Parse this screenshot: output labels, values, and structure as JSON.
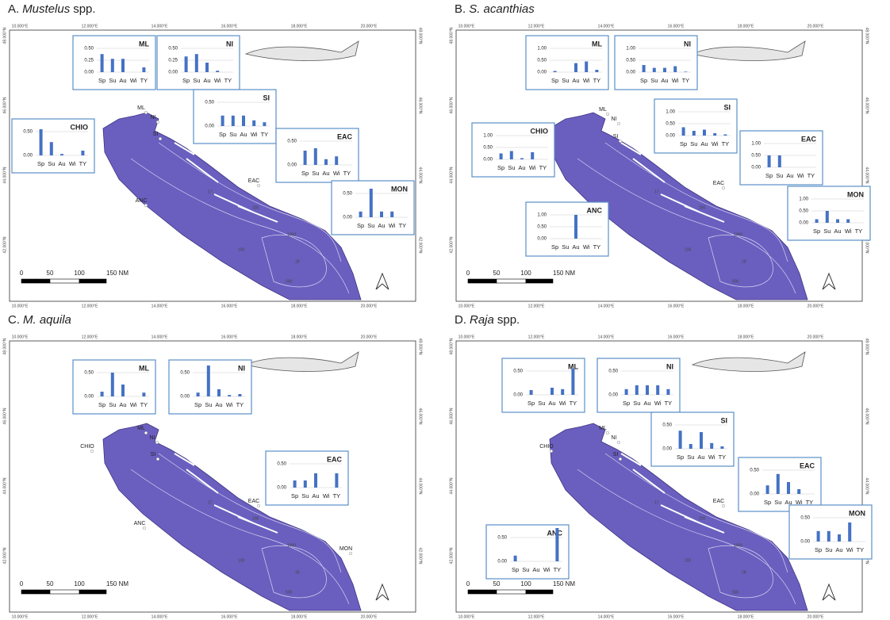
{
  "seasons": [
    "Sp",
    "Su",
    "Au",
    "Wi",
    "TY"
  ],
  "longitudes": [
    "10.000°E",
    "12.000°E",
    "14.000°E",
    "16.000°E",
    "18.000°E",
    "20.000°E"
  ],
  "latitudes": [
    "48.000°N",
    "46.000°N",
    "44.000°N",
    "42.000°N"
  ],
  "scale_bar": [
    "0",
    "50",
    "100",
    "150 NM"
  ],
  "depth_labels": [
    "17",
    "18",
    "200",
    "1000",
    "100",
    "500"
  ],
  "panels": [
    {
      "label": "A.",
      "taxon": "Mustelus",
      "suffix": "spp.",
      "ports": [
        "ML",
        "NI",
        "SI",
        "EAC",
        "ANC"
      ],
      "insets": [
        {
          "site": "ML",
          "ylim": [
            0,
            0.5
          ],
          "yticks": [
            {
              "value": 0,
              "label": "0.00"
            },
            {
              "value": 0.25,
              "label": "0.25"
            },
            {
              "value": 0.5,
              "label": "0.50"
            }
          ],
          "values": [
            0.38,
            0.28,
            0.28,
            0,
            0.1
          ]
        },
        {
          "site": "NI",
          "ylim": [
            0,
            0.5
          ],
          "yticks": [
            {
              "value": 0,
              "label": "0.00"
            },
            {
              "value": 0.25,
              "label": "0.25"
            },
            {
              "value": 0.5,
              "label": "0.50"
            }
          ],
          "values": [
            0.33,
            0.38,
            0.2,
            0.03,
            0
          ]
        },
        {
          "site": "SI",
          "ylim": [
            0,
            0.5
          ],
          "yticks": [
            {
              "value": 0,
              "label": "0.00"
            },
            {
              "value": 0.5,
              "label": "0.50"
            }
          ],
          "values": [
            0.22,
            0.22,
            0.22,
            0.12,
            0.08
          ]
        },
        {
          "site": "CHIO",
          "ylim": [
            0,
            0.5
          ],
          "yticks": [
            {
              "value": 0,
              "label": "0.00"
            },
            {
              "value": 0.5,
              "label": "0.50"
            }
          ],
          "values": [
            0.55,
            0.28,
            0.03,
            0,
            0.1
          ]
        },
        {
          "site": "EAC",
          "ylim": [
            0,
            0.5
          ],
          "yticks": [
            {
              "value": 0,
              "label": "0.00"
            },
            {
              "value": 0.5,
              "label": "0.50"
            }
          ],
          "values": [
            0.3,
            0.35,
            0.12,
            0.18,
            0
          ]
        },
        {
          "site": "MON",
          "ylim": [
            0,
            0.5
          ],
          "yticks": [
            {
              "value": 0,
              "label": "0.00"
            },
            {
              "value": 0.5,
              "label": "0.50"
            }
          ],
          "values": [
            0.12,
            0.6,
            0.12,
            0.12,
            0
          ]
        }
      ]
    },
    {
      "label": "B.",
      "taxon": "S. acanthias",
      "ports": [
        "ML",
        "NI",
        "SI",
        "EAC"
      ],
      "insets": [
        {
          "site": "ML",
          "ylim": [
            0,
            1
          ],
          "yticks": [
            {
              "value": 0,
              "label": "0.00"
            },
            {
              "value": 0.5,
              "label": "0.50"
            },
            {
              "value": 1,
              "label": "1.00"
            }
          ],
          "values": [
            0.05,
            0,
            0.38,
            0.45,
            0.1
          ]
        },
        {
          "site": "NI",
          "ylim": [
            0,
            1
          ],
          "yticks": [
            {
              "value": 0,
              "label": "0.00"
            },
            {
              "value": 0.5,
              "label": "0.50"
            },
            {
              "value": 1,
              "label": "1.00"
            }
          ],
          "values": [
            0.3,
            0.18,
            0.18,
            0.25,
            0.02
          ]
        },
        {
          "site": "SI",
          "ylim": [
            0,
            1
          ],
          "yticks": [
            {
              "value": 0,
              "label": "0.00"
            },
            {
              "value": 0.5,
              "label": "0.50"
            },
            {
              "value": 1,
              "label": "1.00"
            }
          ],
          "values": [
            0.35,
            0.2,
            0.25,
            0.1,
            0.05
          ]
        },
        {
          "site": "CHIO",
          "ylim": [
            0,
            1
          ],
          "yticks": [
            {
              "value": 0,
              "label": "0.00"
            },
            {
              "value": 0.5,
              "label": "0.50"
            },
            {
              "value": 1,
              "label": "1.00"
            }
          ],
          "values": [
            0.25,
            0.35,
            0.05,
            0.3,
            0
          ]
        },
        {
          "site": "EAC",
          "ylim": [
            0,
            1
          ],
          "yticks": [
            {
              "value": 0,
              "label": "0.00"
            },
            {
              "value": 0.5,
              "label": "0.50"
            },
            {
              "value": 1,
              "label": "1.00"
            }
          ],
          "values": [
            0.5,
            0.5,
            0,
            0,
            0
          ]
        },
        {
          "site": "MON",
          "ylim": [
            0,
            1
          ],
          "yticks": [
            {
              "value": 0,
              "label": "0.00"
            },
            {
              "value": 0.5,
              "label": "0.50"
            },
            {
              "value": 1,
              "label": "1.00"
            }
          ],
          "values": [
            0.15,
            0.5,
            0.15,
            0.15,
            0
          ]
        },
        {
          "site": "ANC",
          "ylim": [
            0,
            1
          ],
          "yticks": [
            {
              "value": 0,
              "label": "0.00"
            },
            {
              "value": 0.5,
              "label": "0.50"
            },
            {
              "value": 1,
              "label": "1.00"
            }
          ],
          "values": [
            0,
            0,
            1,
            0,
            0
          ]
        }
      ]
    },
    {
      "label": "C.",
      "taxon": "M. aquila",
      "ports": [
        "ML",
        "NI",
        "SI",
        "CHIO",
        "EAC",
        "ANC",
        "MON"
      ],
      "insets": [
        {
          "site": "ML",
          "ylim": [
            0,
            0.5
          ],
          "yticks": [
            {
              "value": 0,
              "label": "0.00"
            },
            {
              "value": 0.5,
              "label": "0.50"
            }
          ],
          "values": [
            0.1,
            0.5,
            0.25,
            0,
            0.08
          ]
        },
        {
          "site": "NI",
          "ylim": [
            0,
            0.5
          ],
          "yticks": [
            {
              "value": 0,
              "label": "0.00"
            },
            {
              "value": 0.5,
              "label": "0.50"
            }
          ],
          "values": [
            0.08,
            0.65,
            0.15,
            0.03,
            0.05
          ]
        },
        {
          "site": "EAC",
          "ylim": [
            0,
            0.5
          ],
          "yticks": [
            {
              "value": 0,
              "label": "0.00"
            },
            {
              "value": 0.5,
              "label": "0.50"
            }
          ],
          "values": [
            0.15,
            0.15,
            0.3,
            0,
            0.3
          ]
        }
      ]
    },
    {
      "label": "D.",
      "taxon": "Raja",
      "suffix": "spp.",
      "ports": [
        "ML",
        "NI",
        "SI",
        "CHIO",
        "EAC",
        "ANC"
      ],
      "insets": [
        {
          "site": "ML",
          "ylim": [
            0,
            0.5
          ],
          "yticks": [
            {
              "value": 0,
              "label": "0.00"
            },
            {
              "value": 0.5,
              "label": "0.50"
            }
          ],
          "values": [
            0.1,
            0,
            0.15,
            0.12,
            0.55
          ]
        },
        {
          "site": "NI",
          "ylim": [
            0,
            0.5
          ],
          "yticks": [
            {
              "value": 0,
              "label": "0.00"
            },
            {
              "value": 0.5,
              "label": "0.50"
            }
          ],
          "values": [
            0.12,
            0.2,
            0.2,
            0.2,
            0.12
          ]
        },
        {
          "site": "SI",
          "ylim": [
            0,
            0.5
          ],
          "yticks": [
            {
              "value": 0,
              "label": "0.00"
            },
            {
              "value": 0.5,
              "label": "0.50"
            }
          ],
          "values": [
            0.38,
            0.1,
            0.35,
            0.12,
            0.05
          ]
        },
        {
          "site": "EAC",
          "ylim": [
            0,
            0.5
          ],
          "yticks": [
            {
              "value": 0,
              "label": "0.00"
            },
            {
              "value": 0.5,
              "label": "0.50"
            }
          ],
          "values": [
            0.18,
            0.42,
            0.25,
            0.1,
            0
          ]
        },
        {
          "site": "MON",
          "ylim": [
            0,
            0.5
          ],
          "yticks": [
            {
              "value": 0,
              "label": "0.00"
            },
            {
              "value": 0.5,
              "label": "0.50"
            }
          ],
          "values": [
            0.22,
            0.22,
            0.15,
            0.4,
            0
          ]
        },
        {
          "site": "ANC",
          "ylim": [
            0,
            0.5
          ],
          "yticks": [
            {
              "value": 0,
              "label": "0.00"
            },
            {
              "value": 0.5,
              "label": "0.50"
            }
          ],
          "values": [
            0.12,
            0,
            0,
            0,
            0.7
          ]
        }
      ]
    }
  ]
}
